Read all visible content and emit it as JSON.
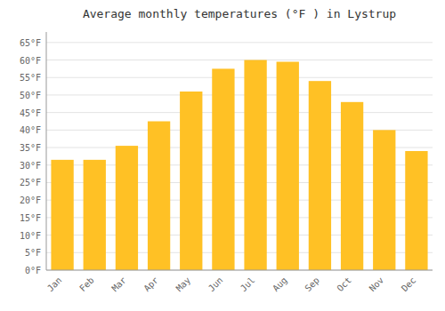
{
  "chart_data": {
    "type": "bar",
    "title": "Average monthly temperatures (°F ) in Lystrup",
    "categories": [
      "Jan",
      "Feb",
      "Mar",
      "Apr",
      "May",
      "Jun",
      "Jul",
      "Aug",
      "Sep",
      "Oct",
      "Nov",
      "Dec"
    ],
    "values": [
      31.5,
      31.5,
      35.5,
      42.5,
      51.0,
      57.5,
      60.0,
      59.5,
      54.0,
      48.0,
      40.0,
      34.0
    ],
    "color": "#FFC125",
    "ylim": [
      0,
      68
    ],
    "yticks": [
      {
        "value": 0,
        "label": "0°F"
      },
      {
        "value": 5,
        "label": "5°F"
      },
      {
        "value": 10,
        "label": "10°F"
      },
      {
        "value": 15,
        "label": "15°F"
      },
      {
        "value": 20,
        "label": "20°F"
      },
      {
        "value": 25,
        "label": "25°F"
      },
      {
        "value": 30,
        "label": "30°F"
      },
      {
        "value": 35,
        "label": "35°F"
      },
      {
        "value": 40,
        "label": "40°F"
      },
      {
        "value": 45,
        "label": "45°F"
      },
      {
        "value": 50,
        "label": "50°F"
      },
      {
        "value": 55,
        "label": "55°F"
      },
      {
        "value": 60,
        "label": "60°F"
      },
      {
        "value": 65,
        "label": "65°F"
      }
    ],
    "grid": true
  }
}
